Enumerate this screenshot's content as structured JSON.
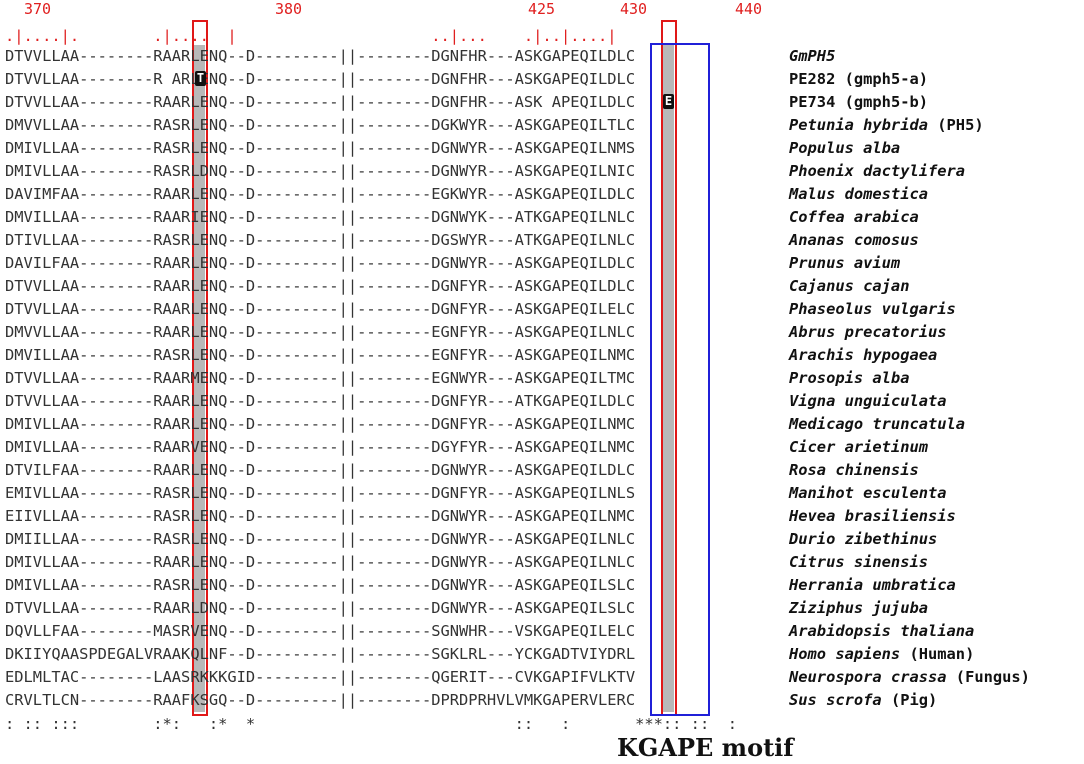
{
  "positions": {
    "p370": "370",
    "p380": "380",
    "p425": "425",
    "p430": "430",
    "p440": "440"
  },
  "ruler": ". | . . . . | .                . | . | . . . .   |                             . . | . . .     . | . | . . . . | . . . . |",
  "rows": [
    {
      "seq": "DTVVLLAA--------RAARLENQ--D---------||--------DGNFHR---ASKGAPEQILDLC",
      "name": "GmPH5",
      "note": ""
    },
    {
      "seq": "DTVVLLAA--------R ARLENQ--D---------||--------DGNFHR---ASKGAPEQILDLC",
      "name": "PE282",
      "note": " (gmph5-a)"
    },
    {
      "seq": "DTVVLLAA--------RAARLENQ--D---------||--------DGNFHR---ASK APEQILDLC",
      "name": "PE734",
      "note": " (gmph5-b)"
    },
    {
      "seq": "DMVVLLAA--------RASRLENQ--D---------||--------DGKWYR---ASKGAPEQILTLC",
      "name": "Petunia hybrida",
      "note": " (PH5)"
    },
    {
      "seq": "DMIVLLAA--------RASRLENQ--D---------||--------DGNWYR---ASKGAPEQILNMS",
      "name": "Populus alba",
      "note": ""
    },
    {
      "seq": "DMIVLLAA--------RASRLDNQ--D---------||--------DGNWYR---ASKGAPEQILNIC",
      "name": "Phoenix dactylifera",
      "note": ""
    },
    {
      "seq": "DAVIMFAA--------RAARLENQ--D---------||--------EGKWYR---ASKGAPEQILDLC",
      "name": "Malus domestica",
      "note": ""
    },
    {
      "seq": "DMVILLAA--------RAARIENQ--D---------||--------DGNWYK---ATKGAPEQILNLC",
      "name": "Coffea arabica",
      "note": ""
    },
    {
      "seq": "DTIVLLAA--------RASRLENQ--D---------||--------DGSWYR---ATKGAPEQILNLC",
      "name": "Ananas comosus",
      "note": ""
    },
    {
      "seq": "DAVILFAA--------RAARLENQ--D---------||--------DGNWYR---ASKGAPEQILDLC",
      "name": "Prunus avium",
      "note": ""
    },
    {
      "seq": "DTVVLLAA--------RAARLENQ--D---------||--------DGNFYR---ASKGAPEQILDLC",
      "name": "Cajanus cajan",
      "note": ""
    },
    {
      "seq": "DTVVLLAA--------RAARLENQ--D---------||--------DGNFYR---ASKGAPEQILELC",
      "name": "Phaseolus vulgaris",
      "note": ""
    },
    {
      "seq": "DMVVLLAA--------RAARLENQ--D---------||--------EGNFYR---ASKGAPEQILNLC",
      "name": "Abrus precatorius",
      "note": ""
    },
    {
      "seq": "DMVILLAA--------RASRLENQ--D---------||--------EGNFYR---ASKGAPEQILNMC",
      "name": "Arachis hypogaea",
      "note": ""
    },
    {
      "seq": "DTVVLLAA--------RAARMENQ--D---------||--------EGNWYR---ASKGAPEQILTMC",
      "name": "Prosopis alba",
      "note": ""
    },
    {
      "seq": "DTVVLLAA--------RAARLENQ--D---------||--------DGNFYR---ATKGAPEQILDLC",
      "name": "Vigna unguiculata",
      "note": ""
    },
    {
      "seq": "DMIVLLAA--------RAARLENQ--D---------||--------DGNFYR---ASKGAPEQILNMC",
      "name": "Medicago truncatula",
      "note": ""
    },
    {
      "seq": "DMIVLLAA--------RAARVENQ--D---------||--------DGYFYR---ASKGAPEQILNMC",
      "name": "Cicer arietinum",
      "note": ""
    },
    {
      "seq": "DTVILFAA--------RAARLENQ--D---------||--------DGNWYR---ASKGAPEQILDLC",
      "name": "Rosa chinensis",
      "note": ""
    },
    {
      "seq": "EMIVLLAA--------RASRLENQ--D---------||--------DGNFYR---ASKGAPEQILNLS",
      "name": "Manihot esculenta",
      "note": ""
    },
    {
      "seq": "EIIVLLAA--------RASRLENQ--D---------||--------DGNWYR---ASKGAPEQILNMC",
      "name": "Hevea brasiliensis",
      "note": ""
    },
    {
      "seq": "DMIILLAA--------RASRLENQ--D---------||--------DGNWYR---ASKGAPEQILNLC",
      "name": "Durio zibethinus",
      "note": ""
    },
    {
      "seq": "DMIVLLAA--------RAARLENQ--D---------||--------DGNWYR---ASKGAPEQILNLC",
      "name": "Citrus sinensis",
      "note": ""
    },
    {
      "seq": "DMIVLLAA--------RASRLENQ--D---------||--------DGNWYR---ASKGAPEQILSLC",
      "name": "Herrania umbratica",
      "note": ""
    },
    {
      "seq": "DTVVLLAA--------RAARLDNQ--D---------||--------DGNWYR---ASKGAPEQILSLC",
      "name": "Ziziphus jujuba",
      "note": ""
    },
    {
      "seq": "DQVLLFAA--------MASRVENQ--D---------||--------SGNWHR---VSKGAPEQILELC",
      "name": "Arabidopsis thaliana",
      "note": ""
    },
    {
      "seq": "DKIIYQAASPDEGALVRAAKQLNF--D---------||--------SGKLRL---YCKGADTVIYDRL",
      "name": "Homo sapiens",
      "note": " (Human)"
    },
    {
      "seq": "EDLMLTAC--------LAASRKKKGID---------||--------QGERIT---CVKGAPIFVLKTV",
      "name": "Neurospora crassa",
      "note": " (Fungus)"
    },
    {
      "seq": "CRVLTLCN--------RAAFKSGQ--D---------||--------DPRDPRHVLVMKGAPERVLERC",
      "name": "Sus scrofa",
      "note": " (Pig)"
    }
  ],
  "conservation": ": :: :::        :*:   :*  *                            ::   :       ***:: ::  :",
  "highlights": {
    "pe282_residue": "T",
    "pe734_residue": "E"
  },
  "motif_label": "KGAPE motif",
  "colors": {
    "red_box": "#e01818",
    "blue_box": "#2020d8",
    "shade": "#b8b8b8",
    "position_numbers": "#e02020"
  }
}
